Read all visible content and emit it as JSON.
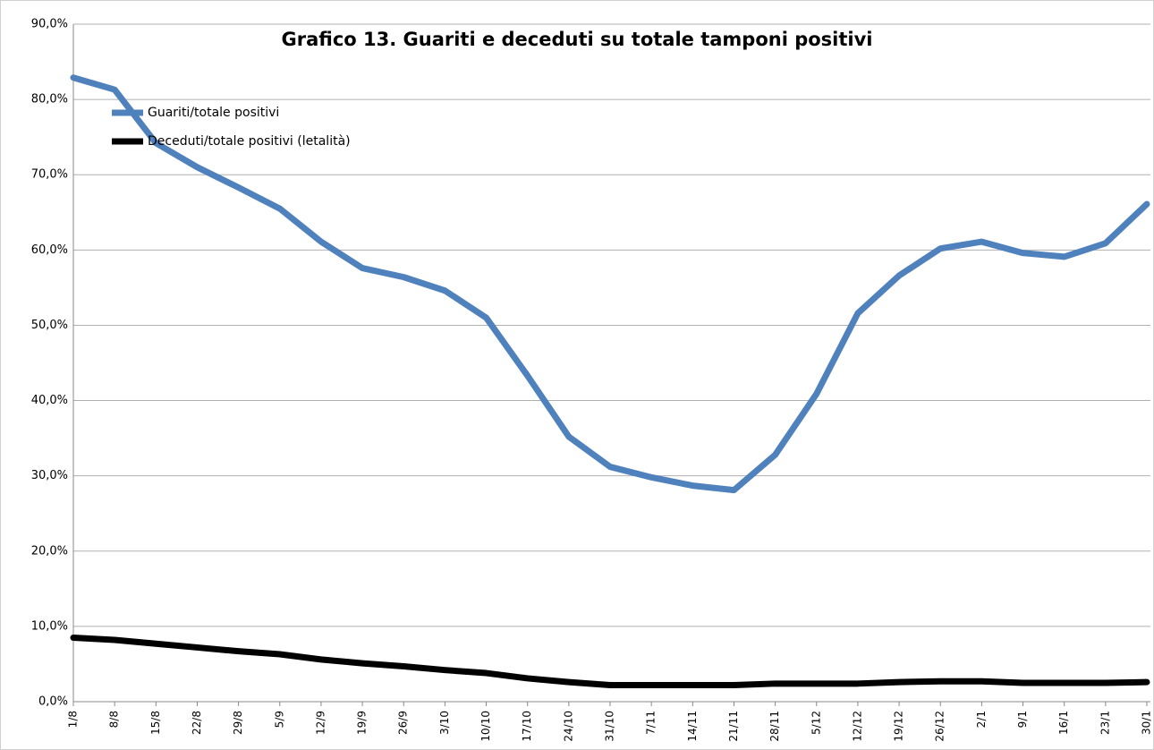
{
  "chart_data": {
    "type": "line",
    "title": "Grafico 13. Guariti e deceduti su totale tamponi positivi",
    "categories": [
      "1/8",
      "8/8",
      "15/8",
      "22/8",
      "29/8",
      "5/9",
      "12/9",
      "19/9",
      "26/9",
      "3/10",
      "10/10",
      "17/10",
      "24/10",
      "31/10",
      "7/11",
      "14/11",
      "21/11",
      "28/11",
      "5/12",
      "12/12",
      "19/12",
      "26/12",
      "2/1",
      "9/1",
      "16/1",
      "23/1",
      "30/1"
    ],
    "series": [
      {
        "name": "Guariti/totale positivi",
        "color": "#4f81bd",
        "values": [
          82.9,
          81.3,
          74.2,
          71.0,
          68.3,
          65.5,
          61.1,
          57.6,
          56.4,
          54.6,
          51.0,
          43.3,
          35.2,
          31.2,
          29.8,
          28.7,
          28.1,
          32.8,
          40.9,
          51.6,
          56.6,
          60.2,
          61.1,
          59.6,
          59.1,
          60.9,
          66.1
        ]
      },
      {
        "name": "Deceduti/totale positivi (letalità)",
        "color": "#000000",
        "values": [
          8.5,
          8.2,
          7.7,
          7.2,
          6.7,
          6.3,
          5.6,
          5.1,
          4.7,
          4.2,
          3.8,
          3.1,
          2.6,
          2.2,
          2.2,
          2.2,
          2.2,
          2.4,
          2.4,
          2.4,
          2.6,
          2.7,
          2.7,
          2.5,
          2.5,
          2.5,
          2.6
        ]
      }
    ],
    "ylim": [
      0,
      90
    ],
    "yticks": [
      {
        "value": 0,
        "label": "0,0%"
      },
      {
        "value": 10,
        "label": "10,0%"
      },
      {
        "value": 20,
        "label": "20,0%"
      },
      {
        "value": 30,
        "label": "30,0%"
      },
      {
        "value": 40,
        "label": "40,0%"
      },
      {
        "value": 50,
        "label": "50,0%"
      },
      {
        "value": 60,
        "label": "60,0%"
      },
      {
        "value": 70,
        "label": "70,0%"
      },
      {
        "value": 80,
        "label": "80,0%"
      },
      {
        "value": 90,
        "label": "90,0%"
      }
    ],
    "grid": true,
    "legend": "upper-left"
  }
}
